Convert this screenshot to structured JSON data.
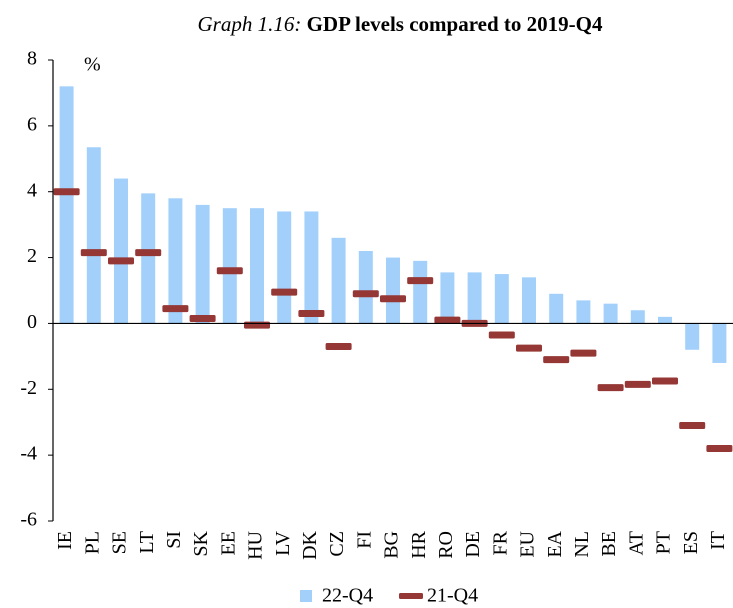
{
  "chart_data": {
    "type": "bar",
    "title_prefix": "Graph 1.16:",
    "title": "GDP levels compared to 2019-Q4",
    "unit_label": "%",
    "categories": [
      "IE",
      "PL",
      "SE",
      "LT",
      "SI",
      "SK",
      "EE",
      "HU",
      "LV",
      "DK",
      "CZ",
      "FI",
      "BG",
      "HR",
      "RO",
      "DE",
      "FR",
      "EU",
      "EA",
      "NL",
      "BE",
      "AT",
      "PT",
      "ES",
      "IT"
    ],
    "series": [
      {
        "name": "22-Q4",
        "color": "#a3d0fb",
        "mark": "bar",
        "values": [
          7.2,
          5.35,
          4.4,
          3.95,
          3.8,
          3.6,
          3.5,
          3.5,
          3.4,
          3.4,
          2.6,
          2.2,
          2.0,
          1.9,
          1.55,
          1.55,
          1.5,
          1.4,
          0.9,
          0.7,
          0.6,
          0.4,
          0.2,
          -0.8,
          -1.2
        ]
      },
      {
        "name": "21-Q4",
        "color": "#953735",
        "mark": "dash",
        "values": [
          4.0,
          2.15,
          1.9,
          2.15,
          0.45,
          0.15,
          1.6,
          -0.05,
          0.95,
          0.3,
          -0.7,
          0.9,
          0.75,
          1.3,
          0.1,
          0.0,
          -0.35,
          -0.75,
          -1.1,
          -0.9,
          -1.95,
          -1.85,
          -1.75,
          -3.1,
          -3.8
        ]
      }
    ],
    "ylim": [
      -6,
      8
    ],
    "yticks": [
      -6,
      -4,
      -2,
      0,
      2,
      4,
      6,
      8
    ],
    "legend": "bottom"
  }
}
